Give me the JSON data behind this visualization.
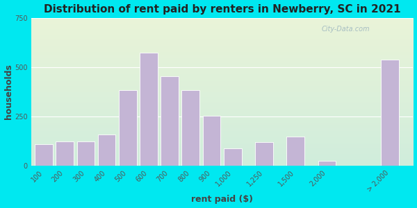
{
  "title": "Distribution of rent paid by renters in Newberry, SC in 2021",
  "xlabel": "rent paid ($)",
  "ylabel": "households",
  "bar_labels": [
    "100",
    "200",
    "300",
    "400",
    "500",
    "600",
    "700",
    "800",
    "900",
    "1,000",
    "1,250",
    "1,500",
    "2,000",
    "> 2,000"
  ],
  "bar_values": [
    110,
    125,
    125,
    160,
    385,
    575,
    455,
    385,
    255,
    90,
    120,
    150,
    25,
    540
  ],
  "bar_color": "#c4b5d5",
  "bg_outer": "#00e8f0",
  "bg_top": "#eaf4d8",
  "bg_bottom": "#d0eddc",
  "ylim": [
    0,
    750
  ],
  "yticks": [
    0,
    250,
    500,
    750
  ],
  "title_fontsize": 11,
  "axis_label_fontsize": 9,
  "tick_fontsize": 7,
  "watermark": "City-Data.com",
  "positions": [
    0,
    1,
    2,
    3,
    4,
    5,
    6,
    7,
    8,
    9,
    10.5,
    12,
    13.5,
    16.5
  ],
  "xlim_left": -0.6,
  "xlim_right": 17.6,
  "bar_width": 0.85
}
